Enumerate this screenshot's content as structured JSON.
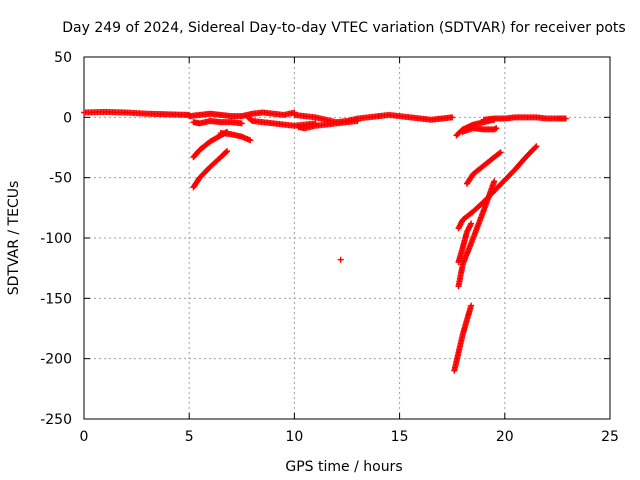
{
  "chart_data": {
    "type": "scatter",
    "title": "Day 249 of 2024, Sidereal Day-to-day VTEC variation (SDTVAR) for receiver pots",
    "xlabel": "GPS time / hours",
    "ylabel": "SDTVAR / TECUs",
    "xlim": [
      0,
      25
    ],
    "ylim": [
      -250,
      50
    ],
    "xticks": [
      "0",
      "5",
      "10",
      "15",
      "20",
      "25"
    ],
    "xtick_values": [
      0,
      5,
      10,
      15,
      20,
      25
    ],
    "yticks": [
      "50",
      "0",
      "-50",
      "-100",
      "-150",
      "-200",
      "-250"
    ],
    "ytick_values": [
      50,
      0,
      -50,
      -100,
      -150,
      -200,
      -250
    ],
    "grid": true,
    "marker": "plus",
    "color": "#ff0000",
    "series": [
      {
        "segments": [
          {
            "x": [
              0,
              1,
              2,
              3,
              4,
              5
            ],
            "y": [
              4,
              4.5,
              4,
              3,
              2.5,
              2
            ]
          },
          {
            "x": [
              5,
              5.5,
              6,
              6.5,
              7,
              7.5
            ],
            "y": [
              1,
              2,
              3,
              2,
              1,
              1
            ]
          },
          {
            "x": [
              7.5,
              8,
              8.5,
              9,
              9.5,
              10
            ],
            "y": [
              1,
              3,
              4,
              3,
              2,
              4
            ]
          },
          {
            "x": [
              10,
              10.5,
              11,
              11.5,
              12,
              12.5,
              13,
              13.5,
              14
            ],
            "y": [
              2,
              1,
              0,
              -2,
              -4,
              -3,
              -1,
              0,
              1
            ]
          },
          {
            "x": [
              14,
              14.5,
              15,
              15.5,
              16,
              16.5,
              17,
              17.5
            ],
            "y": [
              1,
              2,
              1,
              0,
              -1,
              -2,
              -1,
              0
            ]
          },
          {
            "x": [
              19,
              19.5,
              20,
              20.5,
              21,
              21.5,
              22,
              22.5,
              22.9
            ],
            "y": [
              -2,
              -1,
              -1,
              0,
              0,
              0,
              -1,
              -1,
              -1
            ]
          },
          {
            "x": [
              5.2,
              5.5,
              6,
              6.5,
              7,
              7.5
            ],
            "y": [
              -4,
              -5,
              -3,
              -4,
              -4,
              -5
            ]
          },
          {
            "x": [
              7.8,
              8,
              8.5,
              9,
              9.5,
              10,
              10.5,
              11
            ],
            "y": [
              0,
              -3,
              -4,
              -5,
              -6,
              -7,
              -6,
              -5
            ]
          },
          {
            "x": [
              10.2,
              10.5,
              11,
              11.5,
              12,
              12.5,
              13
            ],
            "y": [
              -8,
              -9,
              -7,
              -6,
              -5,
              -4,
              -3
            ]
          },
          {
            "x": [
              5.2,
              5.5,
              6,
              6.5,
              6.8
            ],
            "y": [
              -33,
              -27,
              -20,
              -15,
              -12
            ]
          },
          {
            "x": [
              6.5,
              7,
              7.5,
              7.9
            ],
            "y": [
              -13,
              -14,
              -16,
              -19
            ]
          },
          {
            "x": [
              5.2,
              5.5,
              6,
              6.5,
              6.8
            ],
            "y": [
              -58,
              -50,
              -41,
              -33,
              -28
            ]
          },
          {
            "x": [
              18,
              18.5,
              19,
              19.5,
              19.6
            ],
            "y": [
              -12,
              -9,
              -10,
              -10,
              -9
            ]
          },
          {
            "x": [
              17.7,
              18,
              18.5,
              19,
              19.5
            ],
            "y": [
              -15,
              -10,
              -6,
              -4,
              -2
            ]
          },
          {
            "x": [
              18.2,
              18.5,
              19,
              19.5,
              19.8
            ],
            "y": [
              -55,
              -47,
              -40,
              -33,
              -29
            ]
          },
          {
            "x": [
              17.8,
              18,
              18.5,
              19,
              19.5,
              20,
              20.5,
              21,
              21.5
            ],
            "y": [
              -92,
              -85,
              -78,
              -70,
              -61,
              -52,
              -43,
              -33,
              -24
            ]
          },
          {
            "x": [
              17.8,
              18,
              18.5,
              19,
              19.5
            ],
            "y": [
              -140,
              -122,
              -100,
              -77,
              -53
            ]
          },
          {
            "x": [
              17.8,
              18,
              18.2,
              18.4
            ],
            "y": [
              -120,
              -108,
              -95,
              -88
            ]
          },
          {
            "x": [
              17.6,
              17.8,
              18,
              18.2,
              18.4
            ],
            "y": [
              -210,
              -195,
              -180,
              -168,
              -156
            ]
          },
          {
            "x": [
              12.2
            ],
            "y": [
              -118
            ]
          }
        ]
      }
    ]
  }
}
